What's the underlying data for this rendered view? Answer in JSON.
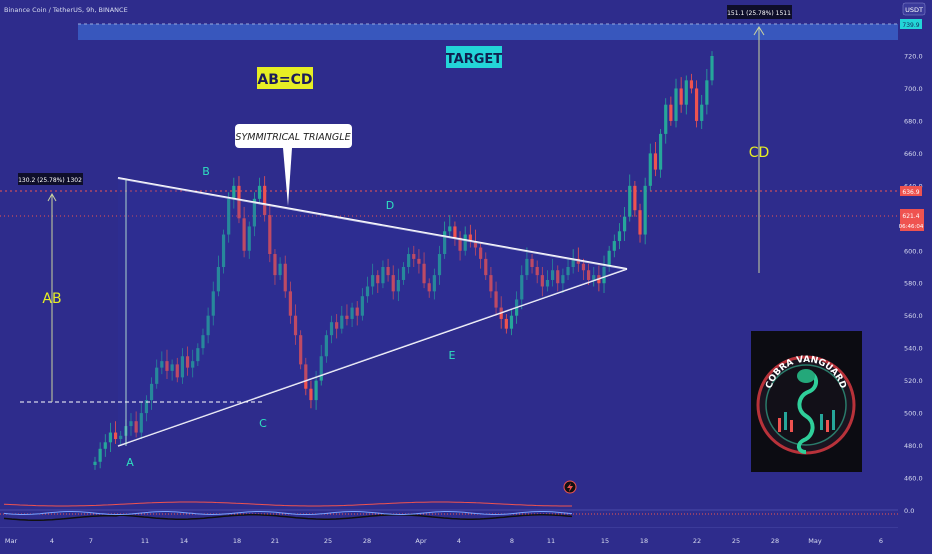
{
  "header": {
    "symbol": "Binance Coin / TetherUS, 9h, BINANCE"
  },
  "price_scale": {
    "currency": "USDT",
    "target_tag": "739.9",
    "current_tag": "621.4",
    "countdown_tag": "06:46:04",
    "marker_tag": "636.9",
    "zero_label": "0.0"
  },
  "annotations": {
    "abcd": "AB=CD",
    "target": "TARGET",
    "triangle": "SYMMITRICAL TRIANGLE",
    "ab_measure": "130.2 (25.78%) 1302",
    "cd_measure": "151.1 (25.78%) 1511",
    "ab": "AB",
    "cd": "CD",
    "points": [
      "A",
      "B",
      "C",
      "D",
      "E"
    ]
  },
  "logo": {
    "text": "COBRA VANGUARD"
  },
  "colors": {
    "background": "#2e2c8c",
    "up": "#26a69a",
    "down": "#ef5350",
    "label_yellow": "#e6ee24",
    "label_cyan": "#23d5d8",
    "target_zone": "#3a5fc6"
  },
  "chart_data": {
    "type": "candlestick",
    "ylim": [
      450,
      745
    ],
    "yticks": [
      460,
      480,
      500,
      520,
      540,
      560,
      580,
      600,
      620,
      640,
      660,
      680,
      700,
      720
    ],
    "xlabels": [
      "Mar",
      "4",
      "7",
      "11",
      "14",
      "18",
      "21",
      "25",
      "28",
      "Apr",
      "4",
      "8",
      "11",
      "15",
      "18",
      "22",
      "25",
      "28",
      "May",
      "6"
    ],
    "price_line": 621.4,
    "target_zone": [
      732,
      745
    ],
    "points": {
      "A": 480,
      "B": 641,
      "C": 509,
      "D": 614,
      "E": 560
    },
    "triangle": {
      "upper": [
        [
          118,
          646
        ],
        [
          627,
          588
        ]
      ],
      "lower": [
        [
          118,
          480
        ],
        [
          627,
          589
        ]
      ]
    },
    "candles_phase": "consolidation then breakout",
    "subpanel": "volume/oscillator near 0.0"
  }
}
